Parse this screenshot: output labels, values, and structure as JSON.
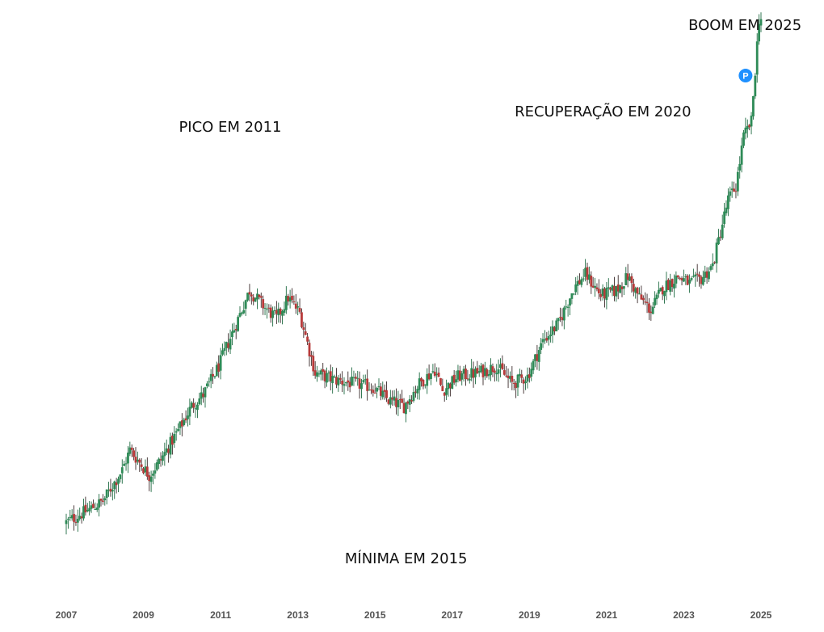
{
  "chart_data": {
    "type": "candlestick",
    "x_ticks": [
      "2007",
      "2009",
      "2011",
      "2013",
      "2015",
      "2017",
      "2019",
      "2021",
      "2023",
      "2025"
    ],
    "x_range": [
      2006.83,
      2025.25
    ],
    "y_scale": "log",
    "y_range": [
      280,
      3300
    ],
    "grid": false,
    "legend": "none",
    "colors": {
      "up": "#2e8b57",
      "down": "#b83a3a",
      "marker": "#1e90ff"
    },
    "annotations": [
      {
        "text": "PICO EM 2011",
        "x": 2011.3,
        "y": 1950
      },
      {
        "text": "MÍNIMA EM 2015",
        "x": 2015.6,
        "y": 290
      },
      {
        "text": "RECUPERAÇÃO EM 2020",
        "x": 2020.0,
        "y": 2080
      },
      {
        "text": "BOOM EM 2025",
        "x": 2024.5,
        "y": 3050
      }
    ],
    "marker": {
      "label": "P",
      "x": 2024.6,
      "y": 2450
    },
    "path": [
      [
        2007.0,
        340
      ],
      [
        2007.6,
        360
      ],
      [
        2008.0,
        375
      ],
      [
        2008.5,
        430
      ],
      [
        2008.7,
        470
      ],
      [
        2009.0,
        440
      ],
      [
        2009.2,
        420
      ],
      [
        2009.5,
        450
      ],
      [
        2010.0,
        520
      ],
      [
        2010.3,
        570
      ],
      [
        2010.6,
        600
      ],
      [
        2011.0,
        680
      ],
      [
        2011.3,
        770
      ],
      [
        2011.8,
        950
      ],
      [
        2012.2,
        880
      ],
      [
        2012.5,
        840
      ],
      [
        2012.8,
        920
      ],
      [
        2013.1,
        860
      ],
      [
        2013.5,
        660
      ],
      [
        2014.0,
        640
      ],
      [
        2014.5,
        630
      ],
      [
        2015.0,
        620
      ],
      [
        2015.4,
        585
      ],
      [
        2015.8,
        570
      ],
      [
        2016.2,
        630
      ],
      [
        2016.6,
        670
      ],
      [
        2016.8,
        610
      ],
      [
        2017.2,
        650
      ],
      [
        2017.7,
        660
      ],
      [
        2018.2,
        680
      ],
      [
        2018.6,
        630
      ],
      [
        2019.0,
        650
      ],
      [
        2019.4,
        760
      ],
      [
        2019.8,
        820
      ],
      [
        2020.2,
        960
      ],
      [
        2020.5,
        1020
      ],
      [
        2020.9,
        930
      ],
      [
        2021.3,
        950
      ],
      [
        2021.6,
        1010
      ],
      [
        2021.9,
        920
      ],
      [
        2022.2,
        870
      ],
      [
        2022.5,
        960
      ],
      [
        2022.9,
        1010
      ],
      [
        2023.2,
        980
      ],
      [
        2023.5,
        1000
      ],
      [
        2023.8,
        1060
      ],
      [
        2024.0,
        1230
      ],
      [
        2024.2,
        1420
      ],
      [
        2024.4,
        1500
      ],
      [
        2024.6,
        1870
      ],
      [
        2024.8,
        2000
      ],
      [
        2025.0,
        3150
      ]
    ]
  }
}
